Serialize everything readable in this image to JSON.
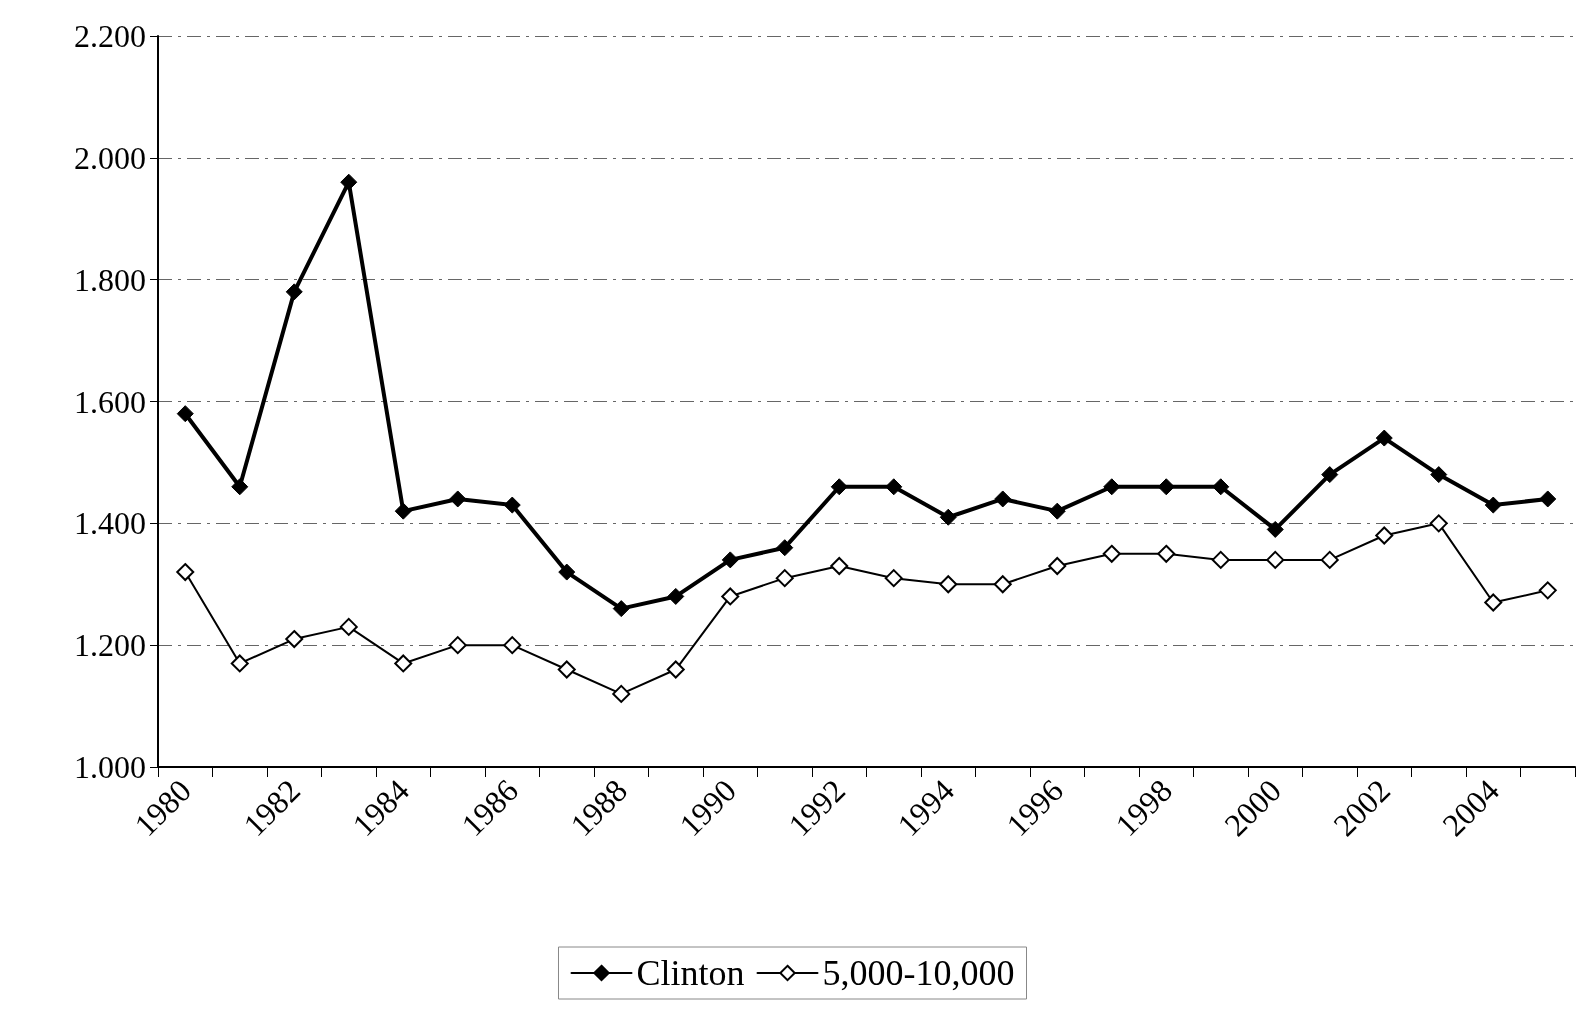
{
  "chart_data": {
    "type": "line",
    "categories": [
      "1980",
      null,
      "1982",
      null,
      "1984",
      null,
      "1986",
      null,
      "1988",
      null,
      "1990",
      null,
      "1992",
      null,
      "1994",
      null,
      "1996",
      null,
      "1998",
      null,
      "2000",
      null,
      "2002",
      null,
      "2004",
      null
    ],
    "series": [
      {
        "name": "Clinton",
        "color": "#000000",
        "values": [
          1.58,
          1.46,
          1.78,
          1.96,
          1.42,
          1.44,
          1.43,
          1.32,
          1.26,
          1.28,
          1.34,
          1.36,
          1.46,
          1.46,
          1.41,
          1.44,
          1.42,
          1.46,
          1.46,
          1.46,
          1.39,
          1.48,
          1.54,
          1.48,
          1.43,
          1.44
        ]
      },
      {
        "name": "5,000-10,000",
        "color": "#000000",
        "values": [
          1.32,
          1.17,
          1.21,
          1.23,
          1.17,
          1.2,
          1.2,
          1.16,
          1.12,
          1.16,
          1.28,
          1.31,
          1.33,
          1.31,
          1.3,
          1.3,
          1.33,
          1.35,
          1.35,
          1.34,
          1.34,
          1.34,
          1.38,
          1.4,
          1.27,
          1.29
        ]
      }
    ],
    "ylim": [
      1,
      2.2
    ],
    "yticks": [
      {
        "value": 1,
        "label": "1.000"
      },
      {
        "value": 1.2,
        "label": "1.200"
      },
      {
        "value": 1.4,
        "label": "1.400"
      },
      {
        "value": 1.6,
        "label": "1.600"
      },
      {
        "value": 1.8,
        "label": "1.800"
      },
      {
        "value": 2,
        "label": "2.000"
      },
      {
        "value": 2.2,
        "label": "2.200"
      }
    ],
    "grid": "y",
    "legend": "bottom",
    "marker": "diamond",
    "line_style": "solid"
  }
}
